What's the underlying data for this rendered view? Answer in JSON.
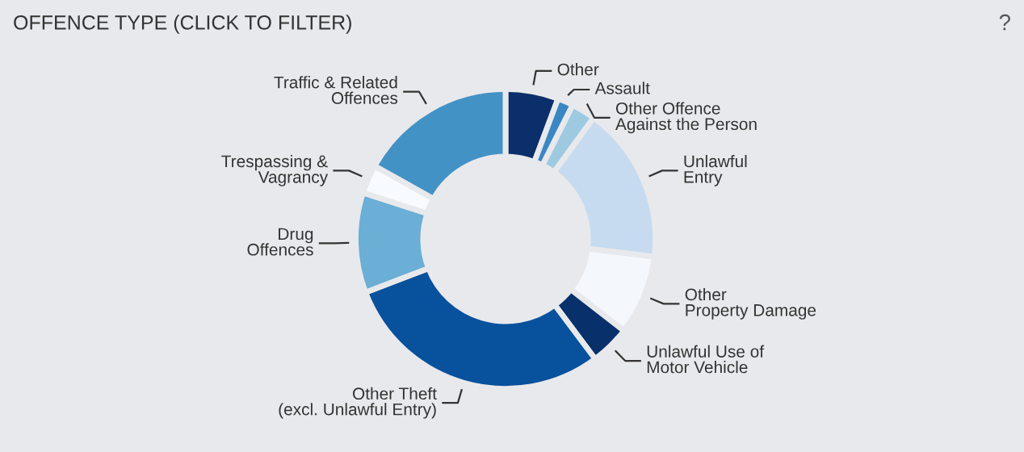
{
  "chart_data": {
    "type": "donut",
    "title": "OFFENCE TYPE (CLICK TO FILTER)",
    "annotations": [
      "?"
    ],
    "categories": [
      "Other",
      "Assault",
      "Other Offence\nAgainst the Person",
      "Unlawful\nEntry",
      "Other\nProperty Damage",
      "Unlawful Use of\nMotor Vehicle",
      "Other Theft\n(excl. Unlawful Entry)",
      "Drug\nOffences",
      "Trespassing &\nVagrancy",
      "Traffic & Related\nOffences"
    ],
    "values": [
      5.7,
      1.7,
      2.6,
      16.9,
      8.6,
      4.3,
      29.4,
      10.8,
      3.1,
      16.9
    ],
    "colors": [
      "#0b2f6b",
      "#3b87c4",
      "#9ecae1",
      "#c6dbef",
      "#f4f8fd",
      "#08306b",
      "#08519c",
      "#6baed6",
      "#f7fbff",
      "#4292c6"
    ],
    "legend": false
  }
}
